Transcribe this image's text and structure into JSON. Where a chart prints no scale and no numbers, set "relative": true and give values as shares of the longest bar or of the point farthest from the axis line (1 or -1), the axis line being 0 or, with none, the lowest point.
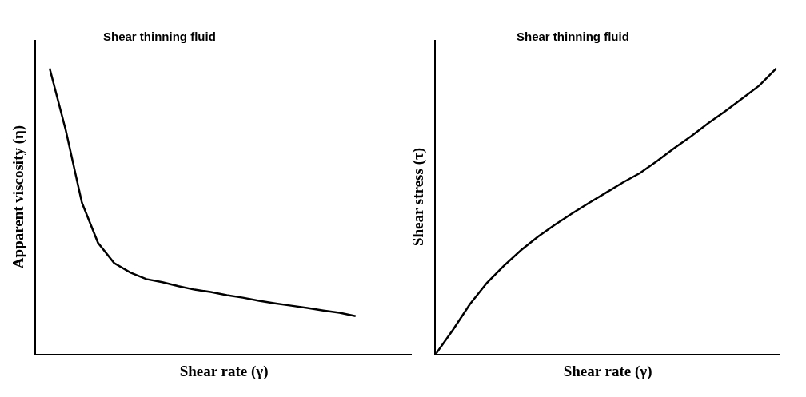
{
  "chart_data": [
    {
      "type": "line",
      "title": "Shear thinning fluid",
      "xlabel": "Shear rate (γ)",
      "ylabel": "Apparent viscosity (η)",
      "relative": true,
      "tick_labels": false,
      "marker": "none",
      "line_style": "solid",
      "categories": [
        null,
        null,
        null,
        null,
        null,
        null,
        null,
        null,
        null,
        null,
        null,
        null,
        null,
        null,
        null,
        null,
        null,
        null,
        null,
        null
      ],
      "series": [
        {
          "color": "#000000",
          "values": [
            1,
            0.783,
            0.53,
            0.389,
            0.318,
            0.285,
            0.262,
            0.251,
            0.237,
            0.225,
            0.217,
            0.206,
            0.197,
            0.186,
            0.177,
            0.169,
            0.161,
            0.152,
            0.144,
            0.132
          ]
        }
      ]
    },
    {
      "type": "line",
      "title": "Shear thinning fluid",
      "xlabel": "Shear rate (γ)",
      "ylabel": "Shear stress (τ)",
      "relative": true,
      "tick_labels": false,
      "marker": "none",
      "line_style": "solid",
      "categories": [
        null,
        null,
        null,
        null,
        null,
        null,
        null,
        null,
        null,
        null,
        null,
        null,
        null,
        null,
        null,
        null,
        null,
        null,
        null,
        null,
        null
      ],
      "series": [
        {
          "color": "#000000",
          "values": [
            0,
            0.084,
            0.174,
            0.249,
            0.309,
            0.363,
            0.411,
            0.453,
            0.492,
            0.529,
            0.565,
            0.601,
            0.634,
            0.676,
            0.721,
            0.763,
            0.808,
            0.85,
            0.895,
            0.94,
            1.0
          ]
        }
      ]
    }
  ]
}
